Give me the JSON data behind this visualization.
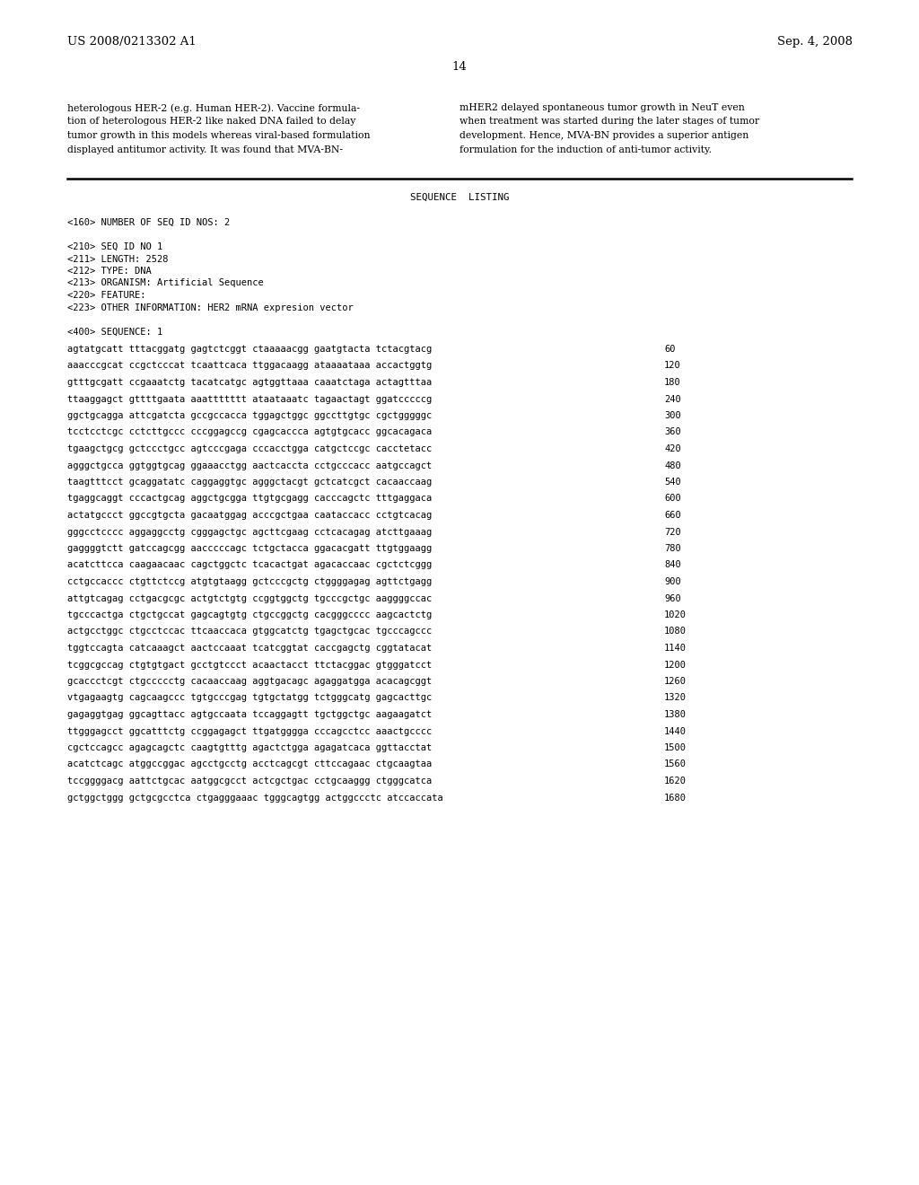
{
  "background_color": "#ffffff",
  "header_left": "US 2008/0213302 A1",
  "header_right": "Sep. 4, 2008",
  "page_number": "14",
  "para_left": [
    "heterologous HER-2 (e.g. Human HER-2). Vaccine formula-",
    "tion of heterologous HER-2 like naked DNA failed to delay",
    "tumor growth in this models whereas viral-based formulation",
    "displayed antitumor activity. It was found that MVA-BN-"
  ],
  "para_right": [
    "mHER2 delayed spontaneous tumor growth in NeuT even",
    "when treatment was started during the later stages of tumor",
    "development. Hence, MVA-BN provides a superior antigen",
    "formulation for the induction of anti-tumor activity."
  ],
  "section_title": "SEQUENCE  LISTING",
  "seq_meta": [
    "<160> NUMBER OF SEQ ID NOS: 2",
    "",
    "<210> SEQ ID NO 1",
    "<211> LENGTH: 2528",
    "<212> TYPE: DNA",
    "<213> ORGANISM: Artificial Sequence",
    "<220> FEATURE:",
    "<223> OTHER INFORMATION: HER2 mRNA expresion vector",
    "",
    "<400> SEQUENCE: 1"
  ],
  "sequence_lines": [
    [
      "agtatgcatt tttacggatg gagtctcggt ctaaaaacgg gaatgtacta tctacgtacg",
      "60"
    ],
    [
      "aaacccgcat ccgctcccat tcaattcaca ttggacaagg ataaaataaa accactggtg",
      "120"
    ],
    [
      "gtttgcgatt ccgaaatctg tacatcatgc agtggttaaa caaatctaga actagtttaa",
      "180"
    ],
    [
      "ttaaggagct gttttgaata aaattttttt ataataaatc tagaactagt ggatcccccg",
      "240"
    ],
    [
      "ggctgcagga attcgatcta gccgccacca tggagctggc ggccttgtgc cgctgggggc",
      "300"
    ],
    [
      "tcctcctcgc cctcttgccc cccggagccg cgagcaccca agtgtgcacc ggcacagaca",
      "360"
    ],
    [
      "tgaagctgcg gctccctgcc agtcccgaga cccacctgga catgctccgc cacctetacc",
      "420"
    ],
    [
      "agggctgcca ggtggtgcag ggaaacctgg aactcaccta cctgcccacc aatgccagct",
      "480"
    ],
    [
      "taagtttcct gcaggatatc caggaggtgc agggctacgt gctcatcgct cacaaccaag",
      "540"
    ],
    [
      "tgaggcaggt cccactgcag aggctgcgga ttgtgcgagg cacccagctc tttgaggaca",
      "600"
    ],
    [
      "actatgccct ggccgtgcta gacaatggag acccgctgaa caataccacc cctgtcacag",
      "660"
    ],
    [
      "gggcctcccc aggaggcctg cgggagctgc agcttcgaag cctcacagag atcttgaaag",
      "720"
    ],
    [
      "gaggggtctt gatccagcgg aacccccagc tctgctacca ggacacgatt ttgtggaagg",
      "780"
    ],
    [
      "acatcttcca caagaacaac cagctggctc tcacactgat agacaccaac cgctctcggg",
      "840"
    ],
    [
      "cctgccaccc ctgttctccg atgtgtaagg gctcccgctg ctggggagag agttctgagg",
      "900"
    ],
    [
      "attgtcagag cctgacgcgc actgtctgtg ccggtggctg tgcccgctgc aaggggccac",
      "960"
    ],
    [
      "tgcccactga ctgctgccat gagcagtgtg ctgccggctg cacgggcccc aagcactctg",
      "1020"
    ],
    [
      "actgcctggc ctgcctccac ttcaaccaca gtggcatctg tgagctgcac tgcccagccc",
      "1080"
    ],
    [
      "tggtccagta catcaaagct aactccaaat tcatcggtat caccgagctg cggtatacat",
      "1140"
    ],
    [
      "tcggcgccag ctgtgtgact gcctgtccct acaactacct ttctacggac gtgggatcct",
      "1200"
    ],
    [
      "gcaccctcgt ctgccccctg cacaaccaag aggtgacagc agaggatgga acacagcggt",
      "1260"
    ],
    [
      "vtgagaagtg cagcaagccc tgtgcccgag tgtgctatgg tctgggcatg gagcacttgc",
      "1320"
    ],
    [
      "gagaggtgag ggcagttacc agtgccaata tccaggagtt tgctggctgc aagaagatct",
      "1380"
    ],
    [
      "ttgggagcct ggcatttctg ccggagagct ttgatgggga cccagcctcc aaactgcccc",
      "1440"
    ],
    [
      "cgctccagcc agagcagctc caagtgtttg agactctgga agagatcaca ggttacctat",
      "1500"
    ],
    [
      "acatctcagc atggccggac agcctgcctg acctcagcgt cttccagaac ctgcaagtaa",
      "1560"
    ],
    [
      "tccggggacg aattctgcac aatggcgcct actcgctgac cctgcaaggg ctgggcatca",
      "1620"
    ],
    [
      "gctggctggg gctgcgcctca ctgagggaaac tgggcagtgg actggccctc atccaccata",
      "1680"
    ]
  ]
}
